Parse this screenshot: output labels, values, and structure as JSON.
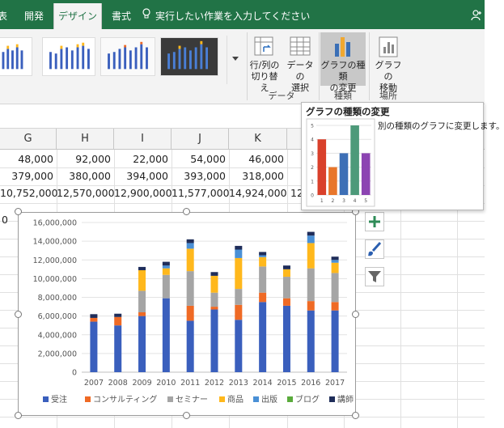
{
  "ribbon_tabs": [
    {
      "label": "表",
      "active": false
    },
    {
      "label": "開発",
      "active": false
    },
    {
      "label": "デザイン",
      "active": true
    },
    {
      "label": "書式",
      "active": false
    }
  ],
  "tell_me": "実行したい作業を入力してください",
  "ribbon": {
    "switch_row_col": {
      "line1": "行/列の",
      "line2": "切り替え"
    },
    "select_data": {
      "line1": "データの",
      "line2": "選択"
    },
    "change_chart_type": {
      "line1": "グラフの種類",
      "line2": "の変更"
    },
    "move_chart": {
      "line1": "グラフの",
      "line2": "移動"
    },
    "group_data": "データ",
    "group_type": "種類",
    "group_location": "場所"
  },
  "columns": [
    "G",
    "H",
    "I",
    "J",
    "K"
  ],
  "rows": [
    [
      "48,000",
      "92,000",
      "22,000",
      "54,000",
      "46,000"
    ],
    [
      "379,000",
      "380,000",
      "394,000",
      "393,000",
      "318,000"
    ],
    [
      "10,752,000",
      "12,570,000",
      "12,900,000",
      "11,577,000",
      "14,924,000"
    ]
  ],
  "row_overflow": "12",
  "left_edge_row_text": "0",
  "tooltip": {
    "title": "グラフの種類の変更",
    "description": "別の種類のグラフに変更します。",
    "preview": {
      "categories": [
        "1",
        "2",
        "3",
        "4",
        "5"
      ],
      "values": [
        4,
        2,
        3,
        5,
        3
      ],
      "yticks": [
        "5",
        "4",
        "3",
        "2",
        "1",
        "0"
      ],
      "colors": [
        "#d9402b",
        "#e8762b",
        "#3d6fb6",
        "#4d9a7a",
        "#8c44b2"
      ]
    }
  },
  "chart_data": {
    "type": "bar",
    "stacked": true,
    "categories": [
      "2007",
      "2008",
      "2009",
      "2010",
      "2011",
      "2012",
      "2013",
      "2014",
      "2015",
      "2016",
      "2017"
    ],
    "yticks": [
      "16,000,000",
      "14,000,000",
      "12,000,000",
      "10,000,000",
      "8,000,000",
      "6,000,000",
      "4,000,000",
      "2,000,000",
      "0"
    ],
    "ylim": [
      0,
      16000000
    ],
    "legend_position": "bottom",
    "series": [
      {
        "name": "受注",
        "color": "#3a5fbd",
        "values": [
          5400000,
          5000000,
          6000000,
          7900000,
          5500000,
          6700000,
          5600000,
          7500000,
          7100000,
          6600000,
          6600000
        ]
      },
      {
        "name": "コンサルティング",
        "color": "#ef6a25",
        "values": [
          400000,
          900000,
          400000,
          0,
          1600000,
          300000,
          1600000,
          1000000,
          800000,
          1000000,
          900000
        ]
      },
      {
        "name": "セミナー",
        "color": "#a5a5a5",
        "values": [
          0,
          0,
          2300000,
          2500000,
          3700000,
          1500000,
          1700000,
          2800000,
          2300000,
          3500000,
          3100000
        ]
      },
      {
        "name": "商品",
        "color": "#ffb81c",
        "values": [
          0,
          0,
          2200000,
          700000,
          2400000,
          1800000,
          3300000,
          1000000,
          800000,
          2700000,
          1100000
        ]
      },
      {
        "name": "出版",
        "color": "#4a90d6",
        "values": [
          0,
          0,
          0,
          300000,
          600000,
          0,
          900000,
          200000,
          0,
          800000,
          300000
        ]
      },
      {
        "name": "ブログ",
        "color": "#5aab3c",
        "values": [
          0,
          0,
          0,
          0,
          0,
          0,
          0,
          0,
          0,
          0,
          0
        ]
      },
      {
        "name": "講師",
        "color": "#1f2d5a",
        "values": [
          400000,
          350000,
          350000,
          400000,
          400000,
          400000,
          400000,
          350000,
          400000,
          400000,
          350000
        ]
      }
    ]
  }
}
